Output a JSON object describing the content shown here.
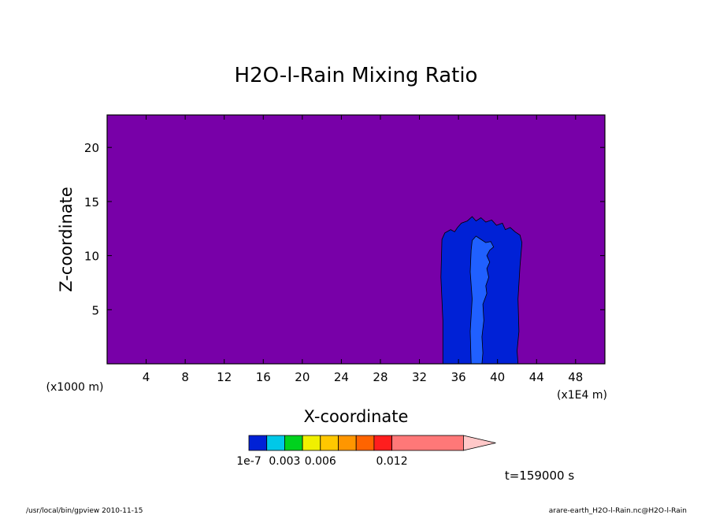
{
  "chart_data": {
    "type": "contour",
    "title": "H2O-l-Rain Mixing Ratio",
    "xlabel": "X-coordinate",
    "ylabel": "Z-coordinate",
    "x_unit_left": "(x1000 m)",
    "x_unit_right": "(x1E4 m)",
    "xlim": [
      0,
      51
    ],
    "ylim": [
      0,
      23
    ],
    "x_ticks": [
      4,
      8,
      12,
      16,
      20,
      24,
      28,
      32,
      36,
      40,
      44,
      48
    ],
    "x_tick_labels": [
      "4",
      "8",
      "12",
      "16",
      "20",
      "24",
      "28",
      "32",
      "36",
      "40",
      "44",
      "48"
    ],
    "y_ticks": [
      5,
      10,
      15,
      20
    ],
    "y_tick_labels": [
      "5",
      "10",
      "15",
      "20"
    ],
    "background_color": "#7800a8",
    "regions": [
      {
        "level": "1e-7 to 0.0015",
        "color": "#0021d6",
        "outline": [
          [
            34.4,
            0
          ],
          [
            34.4,
            4
          ],
          [
            34.2,
            8
          ],
          [
            34.3,
            11.5
          ],
          [
            34.6,
            12.1
          ],
          [
            35.2,
            12.4
          ],
          [
            35.6,
            12.2
          ],
          [
            35.9,
            12.6
          ],
          [
            36.3,
            13
          ],
          [
            36.9,
            13.2
          ],
          [
            37.4,
            13.6
          ],
          [
            37.8,
            13.2
          ],
          [
            38.3,
            13.5
          ],
          [
            38.8,
            13.1
          ],
          [
            39.4,
            13.3
          ],
          [
            39.9,
            12.8
          ],
          [
            40.5,
            13
          ],
          [
            40.8,
            12.4
          ],
          [
            41.3,
            12.6
          ],
          [
            41.8,
            12.2
          ],
          [
            42.3,
            11.9
          ],
          [
            42.5,
            11.2
          ],
          [
            42.3,
            9
          ],
          [
            42.1,
            6
          ],
          [
            42.2,
            3
          ],
          [
            42.0,
            1.2
          ],
          [
            42.1,
            0
          ]
        ]
      },
      {
        "level": "0.0015 to 0.003",
        "color": "#2060ff",
        "outline": [
          [
            37.3,
            0
          ],
          [
            37.2,
            3
          ],
          [
            37.4,
            6
          ],
          [
            37.2,
            8.5
          ],
          [
            37.3,
            10.5
          ],
          [
            37.4,
            11.4
          ],
          [
            37.8,
            11.8
          ],
          [
            38.3,
            11.5
          ],
          [
            38.8,
            11.2
          ],
          [
            39.3,
            11.3
          ],
          [
            39.6,
            10.8
          ],
          [
            39.2,
            10.5
          ],
          [
            38.9,
            10
          ],
          [
            39.2,
            9.4
          ],
          [
            38.9,
            8.8
          ],
          [
            39.1,
            8
          ],
          [
            38.8,
            7.2
          ],
          [
            38.9,
            6.5
          ],
          [
            38.5,
            5.5
          ],
          [
            38.6,
            4
          ],
          [
            38.4,
            2.5
          ],
          [
            38.5,
            1
          ],
          [
            38.4,
            0
          ]
        ]
      }
    ],
    "colorbar": {
      "colors": [
        "#0021d6",
        "#00c8e8",
        "#00d21e",
        "#f0f000",
        "#ffc800",
        "#ff9600",
        "#ff6400",
        "#ff1e1e",
        "#ff7878"
      ],
      "widths": [
        1,
        1,
        1,
        1,
        1,
        1,
        1,
        1,
        4
      ],
      "arrow_color": "#ffc8c8",
      "labels": [
        "1e-7",
        "0.003",
        "0.006",
        "0.012"
      ],
      "label_positions": [
        0,
        2,
        4,
        8
      ]
    },
    "time_label": "t=159000 s"
  },
  "footer": {
    "left": "/usr/local/bin/gpview  2010-11-15",
    "right": "arare-earth_H2O-l-Rain.nc@H2O-l-Rain"
  }
}
